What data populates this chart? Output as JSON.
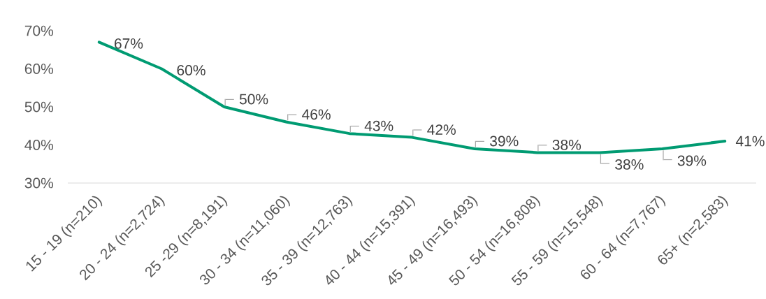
{
  "chart_data": {
    "type": "line",
    "categories": [
      "15 - 19 (n=210)",
      "20 - 24 (n=2,724)",
      "25 -29 (n=8,191)",
      "30 - 34 (n=11,060)",
      "35 - 39 (n=12,763)",
      "40 - 44 (n=15,391)",
      "45 - 49 (n=16,493)",
      "50 - 54 (n=16,808)",
      "55 - 59 (n=15,548)",
      "60 - 64 (n=7,767)",
      "65+ (n=2,583)"
    ],
    "values": [
      67,
      60,
      50,
      46,
      43,
      42,
      39,
      38,
      38,
      39,
      41
    ],
    "value_labels": [
      "67%",
      "60%",
      "50%",
      "46%",
      "43%",
      "42%",
      "39%",
      "38%",
      "38%",
      "39%",
      "41%"
    ],
    "color": "#009B72",
    "ylim": [
      30,
      70
    ],
    "yticks": [
      {
        "value": 30,
        "label": "30%"
      },
      {
        "value": 40,
        "label": "40%"
      },
      {
        "value": 50,
        "label": "50%"
      },
      {
        "value": 60,
        "label": "60%"
      },
      {
        "value": 70,
        "label": "70%"
      }
    ],
    "line_style": "solid"
  }
}
